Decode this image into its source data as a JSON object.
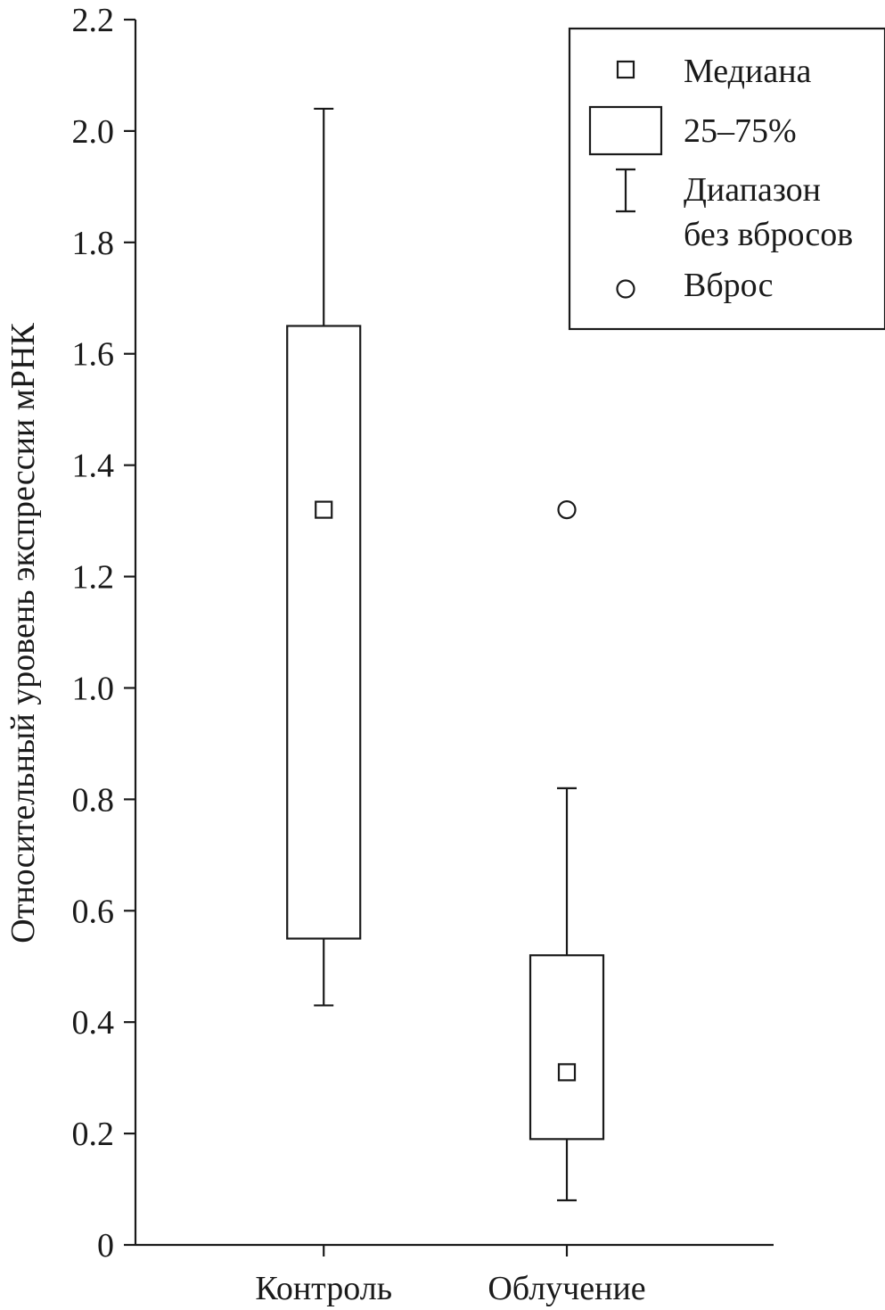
{
  "chart_data": {
    "type": "box",
    "title": "",
    "xlabel": "",
    "ylabel": "Относительный уровень экспрессии мРНК",
    "ylim": [
      0,
      2.2
    ],
    "yticks": [
      0,
      0.2,
      0.4,
      0.6,
      0.8,
      1.0,
      1.2,
      1.4,
      1.6,
      1.8,
      2.0,
      2.2
    ],
    "ytick_labels": [
      "0",
      "0.2",
      "0.4",
      "0.6",
      "0.8",
      "1.0",
      "1.2",
      "1.4",
      "1.6",
      "1.8",
      "2.0",
      "2.2"
    ],
    "categories": [
      "Контроль",
      "Облучение"
    ],
    "boxes": [
      {
        "category": "Контроль",
        "whisker_low": 0.43,
        "q1": 0.55,
        "median": 1.32,
        "q3": 1.65,
        "whisker_high": 2.04,
        "outliers": []
      },
      {
        "category": "Облучение",
        "whisker_low": 0.08,
        "q1": 0.19,
        "median": 0.31,
        "q3": 0.52,
        "whisker_high": 0.82,
        "outliers": [
          1.32
        ]
      }
    ],
    "grid": false,
    "legend": {
      "position": "top-right",
      "items": [
        {
          "symbol": "square-marker",
          "label": "Медиана"
        },
        {
          "symbol": "box",
          "label": "25–75%"
        },
        {
          "symbol": "whisker",
          "label": "Диапазон",
          "label_line2": "без вбросов"
        },
        {
          "symbol": "circle-marker",
          "label": "Вброс"
        }
      ]
    },
    "colors": {
      "ink": "#1a1a1a",
      "background": "#ffffff"
    }
  }
}
